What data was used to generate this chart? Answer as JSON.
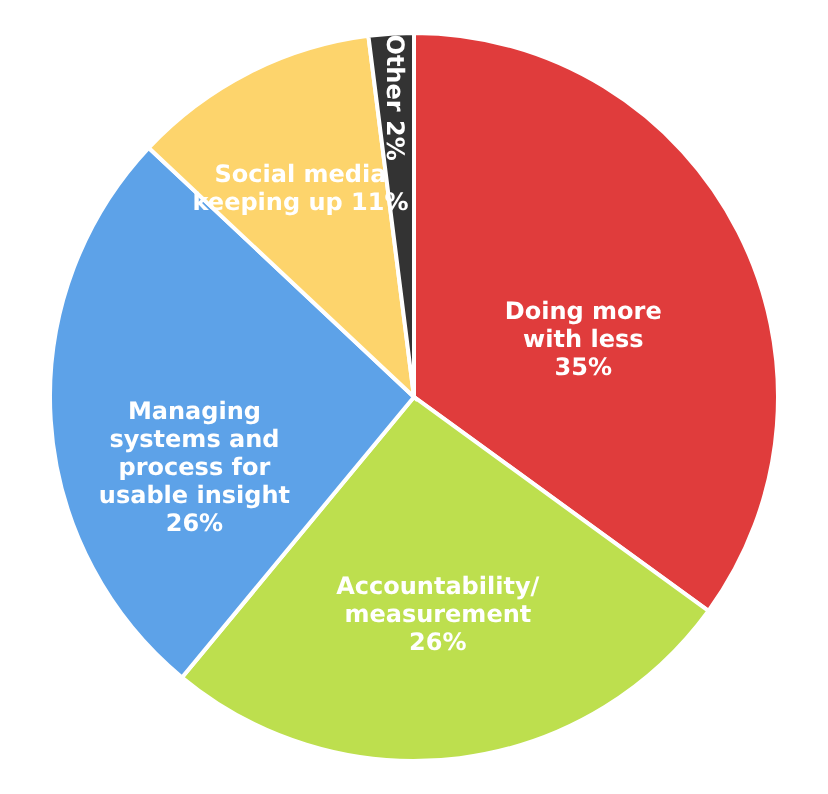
{
  "chart_data": {
    "type": "pie",
    "categories": [
      "Doing more with less",
      "Accountability/measurement",
      "Managing systems and process for usable insight",
      "Social media keeping up",
      "Other"
    ],
    "values": [
      35,
      26,
      26,
      11,
      2
    ],
    "colors": [
      "#e03c3c",
      "#bddf4e",
      "#5da2e8",
      "#fdd46c",
      "#333333"
    ],
    "value_labels": [
      "35%",
      "26%",
      "26%",
      "11%",
      "2%"
    ]
  }
}
